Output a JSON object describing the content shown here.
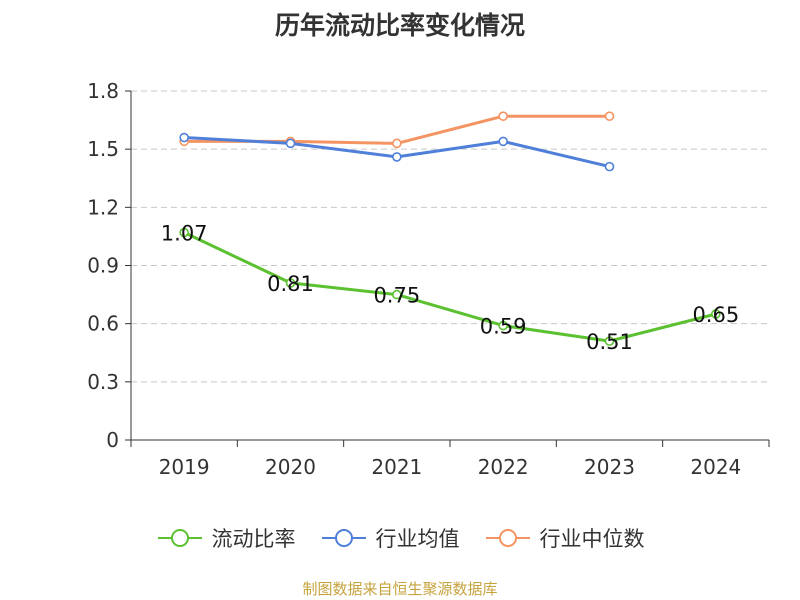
{
  "chart_data": {
    "type": "line",
    "title": "历年流动比率变化情况",
    "categories": [
      "2019",
      "2020",
      "2021",
      "2022",
      "2023",
      "2024"
    ],
    "y_ticks": [
      "0",
      "0.3",
      "0.6",
      "0.9",
      "1.2",
      "1.5",
      "1.8"
    ],
    "ylim": [
      0,
      1.8
    ],
    "grid": "dashed horizontal",
    "legend_position": "bottom",
    "series": [
      {
        "name": "流动比率",
        "color": "#5bc130",
        "values": [
          1.07,
          0.81,
          0.75,
          0.59,
          0.51,
          0.65
        ],
        "labels": [
          "1.07",
          "0.81",
          "0.75",
          "0.59",
          "0.51",
          "0.65"
        ]
      },
      {
        "name": "行业均值",
        "color": "#4f7fd8",
        "values": [
          1.56,
          1.53,
          1.46,
          1.54,
          1.41,
          null
        ]
      },
      {
        "name": "行业中位数",
        "color": "#f59463",
        "values": [
          1.54,
          1.54,
          1.53,
          1.67,
          1.67,
          null
        ]
      }
    ]
  },
  "source": "制图数据来自恒生聚源数据库"
}
